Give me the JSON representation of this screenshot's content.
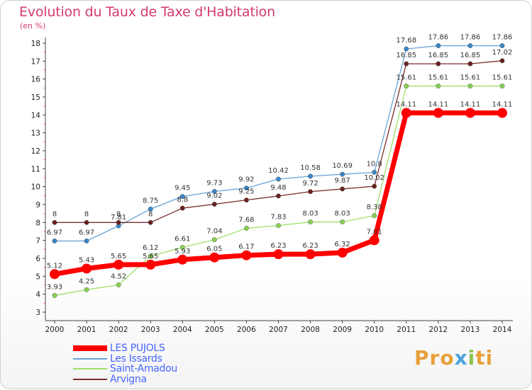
{
  "title": "Evolution du Taux de Taxe d'Habitation",
  "subtitle": "(en %)",
  "brand": {
    "p1": "Pro",
    "p2": "x",
    "p3": "i",
    "p4": "ti"
  },
  "chart_data": {
    "type": "line",
    "title": "Evolution du Taux de Taxe d'Habitation",
    "ylabel": "(en %)",
    "xlabel": "",
    "x": [
      2000,
      2001,
      2002,
      2003,
      2004,
      2005,
      2006,
      2007,
      2008,
      2009,
      2010,
      2011,
      2012,
      2013,
      2014
    ],
    "ylim": [
      3,
      18
    ],
    "yticks": [
      3,
      4,
      5,
      6,
      7,
      8,
      9,
      10,
      11,
      12,
      13,
      14,
      15,
      16,
      17,
      18
    ],
    "legend_position": "bottom-left",
    "grid": false,
    "series": [
      {
        "name": "LES PUJOLS",
        "color": "#ff0000",
        "values": [
          5.12,
          5.43,
          5.65,
          5.65,
          5.93,
          6.05,
          6.17,
          6.23,
          6.23,
          6.32,
          7.01,
          14.11,
          14.11,
          14.11,
          14.11
        ],
        "labels": [
          "5.12",
          "5.43",
          "5.65",
          "5.65",
          "5.93",
          "6.05",
          "6.17",
          "6.23",
          "6.23",
          "6.32",
          "7.01",
          "14.11",
          "14.11",
          "14.11",
          "14.11"
        ]
      },
      {
        "name": "Les Issards",
        "color": "#6ba3d6",
        "values": [
          6.97,
          6.97,
          7.81,
          8.75,
          9.45,
          9.73,
          9.92,
          10.42,
          10.58,
          10.69,
          10.8,
          17.68,
          17.86,
          17.86,
          17.86
        ],
        "labels": [
          "6.97",
          "6.97",
          "7.81",
          "8.75",
          "9.45",
          "9.73",
          "9.92",
          "10.42",
          "10.58",
          "10.69",
          "10.8",
          "17.68",
          "17.86",
          "17.86",
          "17.86"
        ]
      },
      {
        "name": "Saint-Amadou",
        "color": "#9ee06a",
        "values": [
          3.93,
          4.25,
          4.52,
          6.12,
          6.61,
          7.04,
          7.68,
          7.83,
          8.03,
          8.03,
          8.38,
          15.61,
          15.61,
          15.61,
          15.61
        ],
        "labels": [
          "3.93",
          "4.25",
          "4.52",
          "6.12",
          "6.61",
          "7.04",
          "7.68",
          "7.83",
          "8.03",
          "8.03",
          "8.38",
          "15.61",
          "15.61",
          "15.61",
          "15.61"
        ]
      },
      {
        "name": "Arvigna",
        "color": "#7a2b2b",
        "values": [
          8,
          8,
          8,
          8,
          8.8,
          9.02,
          9.25,
          9.48,
          9.72,
          9.87,
          10.02,
          16.85,
          16.85,
          16.85,
          17.02
        ],
        "labels": [
          "8",
          "8",
          "8",
          "8",
          "8.8",
          "9.02",
          "9.25",
          "9.48",
          "9.72",
          "9.87",
          "10.02",
          "16.85",
          "16.85",
          "16.85",
          "17.02"
        ]
      }
    ]
  }
}
